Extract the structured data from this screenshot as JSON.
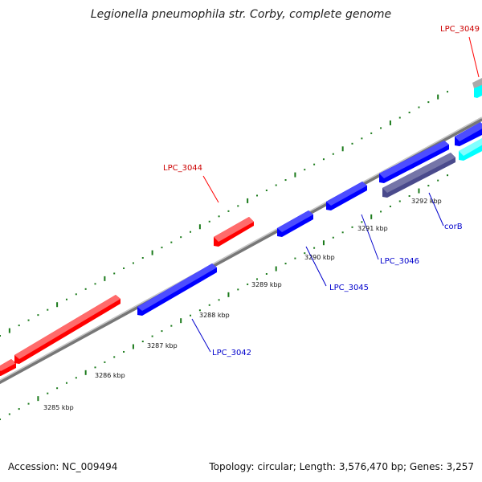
{
  "title": "Legionella pneumophila str. Corby, complete genome",
  "footer": {
    "accession": "Accession: NC_009494",
    "summary": "Topology: circular; Length: 3,576,470 bp; Genes: 3,257"
  },
  "colors": {
    "forward_gene": "#ff0000",
    "reverse_gene": "#0000ff",
    "rna_gene": "#00ffff",
    "special_gene": "#4a4a8c",
    "backbone": "#999999",
    "tick": "#1a7a1a",
    "forward_label": "#cc0000",
    "reverse_label": "#0000cc"
  },
  "scale_labels": [
    {
      "text": "3285 kbp"
    },
    {
      "text": "3286 kbp"
    },
    {
      "text": "3287 kbp"
    },
    {
      "text": "3288 kbp"
    },
    {
      "text": "3289 kbp"
    },
    {
      "text": "3290 kbp"
    },
    {
      "text": "3291 kbp"
    },
    {
      "text": "3292 kbp"
    }
  ],
  "gene_labels": [
    {
      "text": "LPC_3044",
      "strand": "forward"
    },
    {
      "text": "LPC_3049",
      "strand": "forward"
    },
    {
      "text": "LPC_3042",
      "strand": "reverse"
    },
    {
      "text": "LPC_3045",
      "strand": "reverse"
    },
    {
      "text": "LPC_3046",
      "strand": "reverse"
    },
    {
      "text": "corB",
      "strand": "reverse"
    }
  ]
}
